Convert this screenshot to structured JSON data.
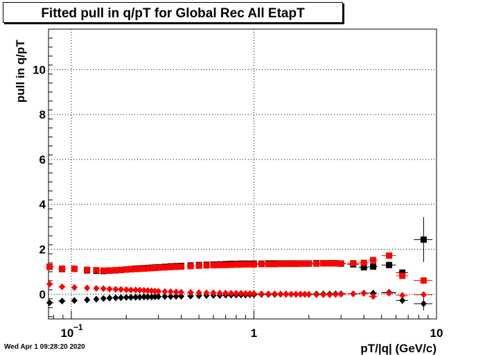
{
  "chart_data": {
    "type": "scatter",
    "title": "Fitted pull in q/pT for Global Rec All EtapT",
    "xlabel": "pT/|q| (GeV/c)",
    "ylabel": "pull in q/pT",
    "x_scale": "log",
    "xlim": [
      0.075,
      10
    ],
    "ylim": [
      -1.1,
      11.8
    ],
    "x_ticks": [
      {
        "value": 0.1,
        "label": "10",
        "exp": "−1"
      },
      {
        "value": 1,
        "label": "1",
        "exp": ""
      },
      {
        "value": 10,
        "label": "10",
        "exp": ""
      }
    ],
    "y_ticks": [
      0,
      2,
      4,
      6,
      8,
      10
    ],
    "grid": true,
    "series": [
      {
        "color": "#000000",
        "marker": "square",
        "x": [
          0.076,
          0.089,
          0.104,
          0.122,
          0.137,
          0.15,
          0.162,
          0.175,
          0.187,
          0.2,
          0.212,
          0.225,
          0.237,
          0.25,
          0.262,
          0.275,
          0.287,
          0.3,
          0.325,
          0.35,
          0.375,
          0.4,
          0.45,
          0.5,
          0.55,
          0.6,
          0.65,
          0.7,
          0.75,
          0.8,
          0.85,
          0.9,
          0.95,
          1.0,
          1.1,
          1.2,
          1.3,
          1.4,
          1.5,
          1.6,
          1.7,
          1.8,
          1.9,
          2.0,
          2.2,
          2.4,
          2.6,
          2.8,
          3.0,
          3.5,
          4.0,
          4.5,
          5.5,
          6.5,
          8.5
        ],
        "y": [
          1.22,
          1.12,
          1.13,
          1.06,
          1.04,
          1.03,
          1.05,
          1.06,
          1.08,
          1.1,
          1.12,
          1.14,
          1.15,
          1.16,
          1.17,
          1.18,
          1.19,
          1.2,
          1.22,
          1.24,
          1.25,
          1.26,
          1.28,
          1.3,
          1.31,
          1.32,
          1.33,
          1.34,
          1.35,
          1.35,
          1.36,
          1.36,
          1.36,
          1.36,
          1.36,
          1.37,
          1.37,
          1.37,
          1.37,
          1.37,
          1.37,
          1.37,
          1.37,
          1.37,
          1.38,
          1.38,
          1.38,
          1.38,
          1.36,
          1.33,
          1.2,
          1.23,
          1.3,
          0.96,
          2.43
        ],
        "xerr_half_widths": [
          0.004,
          0.004,
          0.004,
          0.004,
          0.004,
          0.004,
          0.004,
          0.004,
          0.004,
          0.004,
          0.004,
          0.004,
          0.004,
          0.004,
          0.004,
          0.004,
          0.004,
          0.004,
          0.01,
          0.01,
          0.01,
          0.01,
          0.02,
          0.02,
          0.02,
          0.02,
          0.02,
          0.02,
          0.02,
          0.02,
          0.02,
          0.02,
          0.02,
          0.05,
          0.05,
          0.05,
          0.05,
          0.05,
          0.05,
          0.05,
          0.05,
          0.05,
          0.05,
          0.1,
          0.1,
          0.1,
          0.1,
          0.1,
          0.2,
          0.25,
          0.25,
          0.25,
          0.5,
          0.5,
          1.0
        ],
        "yerr": [
          0.05,
          0.04,
          0.04,
          0.03,
          0.03,
          0.03,
          0.03,
          0.03,
          0.03,
          0.03,
          0.03,
          0.03,
          0.03,
          0.03,
          0.03,
          0.03,
          0.03,
          0.03,
          0.03,
          0.03,
          0.03,
          0.03,
          0.03,
          0.03,
          0.03,
          0.03,
          0.03,
          0.03,
          0.03,
          0.03,
          0.03,
          0.03,
          0.03,
          0.03,
          0.03,
          0.03,
          0.03,
          0.03,
          0.03,
          0.03,
          0.03,
          0.03,
          0.03,
          0.03,
          0.03,
          0.03,
          0.03,
          0.03,
          0.04,
          0.05,
          0.06,
          0.08,
          0.12,
          0.15,
          1.0
        ]
      },
      {
        "color": "#000000",
        "marker": "diamond",
        "x": [
          0.076,
          0.089,
          0.104,
          0.122,
          0.137,
          0.15,
          0.162,
          0.175,
          0.187,
          0.2,
          0.212,
          0.225,
          0.237,
          0.25,
          0.262,
          0.275,
          0.287,
          0.3,
          0.325,
          0.35,
          0.375,
          0.4,
          0.45,
          0.5,
          0.55,
          0.6,
          0.65,
          0.7,
          0.75,
          0.8,
          0.85,
          0.9,
          0.95,
          1.0,
          1.1,
          1.2,
          1.3,
          1.4,
          1.5,
          1.6,
          1.7,
          1.8,
          1.9,
          2.0,
          2.2,
          2.4,
          2.6,
          2.8,
          3.0,
          3.5,
          4.0,
          4.5,
          5.5,
          6.5,
          8.5
        ],
        "y": [
          -0.38,
          -0.3,
          -0.28,
          -0.25,
          -0.22,
          -0.19,
          -0.17,
          -0.16,
          -0.15,
          -0.14,
          -0.14,
          -0.13,
          -0.13,
          -0.12,
          -0.12,
          -0.12,
          -0.11,
          -0.11,
          -0.1,
          -0.1,
          -0.09,
          -0.09,
          -0.08,
          -0.07,
          -0.06,
          -0.05,
          -0.05,
          -0.04,
          -0.04,
          -0.03,
          -0.03,
          -0.03,
          -0.02,
          -0.02,
          -0.01,
          -0.01,
          -0.01,
          0.0,
          0.0,
          0.0,
          0.0,
          0.0,
          0.0,
          0.0,
          0.01,
          0.01,
          0.01,
          0.02,
          0.02,
          0.02,
          0.05,
          0.05,
          0.08,
          -0.28,
          -0.42
        ],
        "xerr_half_widths": [
          0.004,
          0.004,
          0.004,
          0.004,
          0.004,
          0.004,
          0.004,
          0.004,
          0.004,
          0.004,
          0.004,
          0.004,
          0.004,
          0.004,
          0.004,
          0.004,
          0.004,
          0.004,
          0.01,
          0.01,
          0.01,
          0.01,
          0.02,
          0.02,
          0.02,
          0.02,
          0.02,
          0.02,
          0.02,
          0.02,
          0.02,
          0.02,
          0.02,
          0.05,
          0.05,
          0.05,
          0.05,
          0.05,
          0.05,
          0.05,
          0.05,
          0.05,
          0.05,
          0.1,
          0.1,
          0.1,
          0.1,
          0.1,
          0.2,
          0.25,
          0.25,
          0.25,
          0.5,
          0.5,
          1.0
        ],
        "yerr": [
          0.05,
          0.04,
          0.04,
          0.03,
          0.03,
          0.03,
          0.03,
          0.03,
          0.03,
          0.03,
          0.03,
          0.03,
          0.03,
          0.03,
          0.03,
          0.03,
          0.03,
          0.03,
          0.03,
          0.03,
          0.03,
          0.03,
          0.03,
          0.03,
          0.03,
          0.03,
          0.03,
          0.03,
          0.03,
          0.03,
          0.03,
          0.03,
          0.03,
          0.03,
          0.03,
          0.03,
          0.03,
          0.03,
          0.03,
          0.03,
          0.03,
          0.03,
          0.03,
          0.03,
          0.03,
          0.03,
          0.03,
          0.03,
          0.04,
          0.05,
          0.06,
          0.08,
          0.1,
          0.15,
          0.3
        ]
      },
      {
        "color": "#ff0000",
        "marker": "square",
        "x": [
          0.076,
          0.089,
          0.104,
          0.122,
          0.137,
          0.15,
          0.162,
          0.175,
          0.187,
          0.2,
          0.212,
          0.225,
          0.237,
          0.25,
          0.262,
          0.275,
          0.287,
          0.3,
          0.325,
          0.35,
          0.375,
          0.4,
          0.45,
          0.5,
          0.55,
          0.6,
          0.65,
          0.7,
          0.75,
          0.8,
          0.85,
          0.9,
          0.95,
          1.0,
          1.1,
          1.2,
          1.3,
          1.4,
          1.5,
          1.6,
          1.7,
          1.8,
          1.9,
          2.0,
          2.2,
          2.4,
          2.6,
          2.8,
          3.0,
          3.5,
          4.0,
          4.5,
          5.5,
          6.5,
          8.5
        ],
        "y": [
          1.22,
          1.14,
          1.13,
          1.09,
          1.07,
          1.05,
          1.06,
          1.07,
          1.08,
          1.1,
          1.11,
          1.12,
          1.13,
          1.14,
          1.15,
          1.16,
          1.17,
          1.18,
          1.19,
          1.21,
          1.22,
          1.23,
          1.25,
          1.27,
          1.28,
          1.29,
          1.3,
          1.3,
          1.31,
          1.32,
          1.32,
          1.33,
          1.33,
          1.33,
          1.34,
          1.34,
          1.34,
          1.35,
          1.35,
          1.35,
          1.35,
          1.36,
          1.36,
          1.36,
          1.36,
          1.37,
          1.37,
          1.37,
          1.37,
          1.38,
          1.4,
          1.52,
          1.72,
          0.82,
          0.61
        ],
        "xerr_half_widths": [
          0.004,
          0.004,
          0.004,
          0.004,
          0.004,
          0.004,
          0.004,
          0.004,
          0.004,
          0.004,
          0.004,
          0.004,
          0.004,
          0.004,
          0.004,
          0.004,
          0.004,
          0.004,
          0.01,
          0.01,
          0.01,
          0.01,
          0.02,
          0.02,
          0.02,
          0.02,
          0.02,
          0.02,
          0.02,
          0.02,
          0.02,
          0.02,
          0.02,
          0.05,
          0.05,
          0.05,
          0.05,
          0.05,
          0.05,
          0.05,
          0.05,
          0.05,
          0.05,
          0.1,
          0.1,
          0.1,
          0.1,
          0.1,
          0.2,
          0.25,
          0.25,
          0.25,
          0.5,
          0.5,
          1.0
        ],
        "yerr": [
          0.05,
          0.04,
          0.04,
          0.03,
          0.03,
          0.03,
          0.03,
          0.03,
          0.03,
          0.03,
          0.03,
          0.03,
          0.03,
          0.03,
          0.03,
          0.03,
          0.03,
          0.03,
          0.03,
          0.03,
          0.03,
          0.03,
          0.03,
          0.03,
          0.03,
          0.03,
          0.03,
          0.03,
          0.03,
          0.03,
          0.03,
          0.03,
          0.03,
          0.03,
          0.03,
          0.03,
          0.03,
          0.03,
          0.03,
          0.03,
          0.03,
          0.03,
          0.03,
          0.03,
          0.03,
          0.03,
          0.03,
          0.03,
          0.04,
          0.05,
          0.06,
          0.08,
          0.1,
          0.12,
          0.15
        ]
      },
      {
        "color": "#ff0000",
        "marker": "diamond",
        "x": [
          0.076,
          0.089,
          0.104,
          0.122,
          0.137,
          0.15,
          0.162,
          0.175,
          0.187,
          0.2,
          0.212,
          0.225,
          0.237,
          0.25,
          0.262,
          0.275,
          0.287,
          0.3,
          0.325,
          0.35,
          0.375,
          0.4,
          0.45,
          0.5,
          0.55,
          0.6,
          0.65,
          0.7,
          0.75,
          0.8,
          0.85,
          0.9,
          0.95,
          1.0,
          1.1,
          1.2,
          1.3,
          1.4,
          1.5,
          1.6,
          1.7,
          1.8,
          1.9,
          2.0,
          2.2,
          2.4,
          2.6,
          2.8,
          3.0,
          3.5,
          4.0,
          4.5,
          5.5,
          6.5,
          8.5
        ],
        "y": [
          0.45,
          0.33,
          0.3,
          0.28,
          0.26,
          0.25,
          0.23,
          0.22,
          0.21,
          0.2,
          0.19,
          0.19,
          0.18,
          0.17,
          0.16,
          0.15,
          0.14,
          0.13,
          0.12,
          0.11,
          0.1,
          0.09,
          0.08,
          0.07,
          0.06,
          0.06,
          0.05,
          0.05,
          0.04,
          0.04,
          0.04,
          0.03,
          0.03,
          0.03,
          0.02,
          0.02,
          0.02,
          0.01,
          0.01,
          0.0,
          0.0,
          0.0,
          -0.01,
          -0.01,
          -0.02,
          -0.02,
          -0.02,
          -0.01,
          0.0,
          0.02,
          0.04,
          -0.1,
          0.05,
          -0.05,
          -0.02
        ],
        "xerr_half_widths": [
          0.004,
          0.004,
          0.004,
          0.004,
          0.004,
          0.004,
          0.004,
          0.004,
          0.004,
          0.004,
          0.004,
          0.004,
          0.004,
          0.004,
          0.004,
          0.004,
          0.004,
          0.004,
          0.01,
          0.01,
          0.01,
          0.01,
          0.02,
          0.02,
          0.02,
          0.02,
          0.02,
          0.02,
          0.02,
          0.02,
          0.02,
          0.02,
          0.02,
          0.05,
          0.05,
          0.05,
          0.05,
          0.05,
          0.05,
          0.05,
          0.05,
          0.05,
          0.05,
          0.1,
          0.1,
          0.1,
          0.1,
          0.1,
          0.2,
          0.25,
          0.25,
          0.25,
          0.5,
          0.5,
          1.0
        ],
        "yerr": [
          0.05,
          0.04,
          0.04,
          0.03,
          0.03,
          0.03,
          0.03,
          0.03,
          0.03,
          0.03,
          0.03,
          0.03,
          0.03,
          0.03,
          0.03,
          0.03,
          0.03,
          0.03,
          0.03,
          0.03,
          0.03,
          0.03,
          0.03,
          0.03,
          0.03,
          0.03,
          0.03,
          0.03,
          0.03,
          0.03,
          0.03,
          0.03,
          0.03,
          0.03,
          0.03,
          0.03,
          0.03,
          0.03,
          0.03,
          0.03,
          0.03,
          0.03,
          0.03,
          0.03,
          0.03,
          0.03,
          0.03,
          0.03,
          0.04,
          0.05,
          0.06,
          0.08,
          0.1,
          0.12,
          0.15
        ]
      }
    ]
  },
  "footer": {
    "date": "Wed Apr  1 09:28:20 2020"
  }
}
